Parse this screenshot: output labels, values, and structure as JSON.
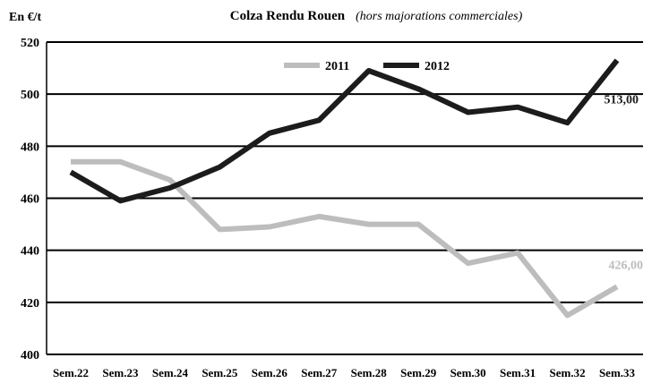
{
  "chart_data": {
    "type": "line",
    "title": "Colza Rendu Rouen",
    "subtitle": "(hors majorations commerciales)",
    "unit_label": "En €/t",
    "categories": [
      "Sem.22",
      "Sem.23",
      "Sem.24",
      "Sem.25",
      "Sem.26",
      "Sem.27",
      "Sem.28",
      "Sem.29",
      "Sem.30",
      "Sem.31",
      "Sem.32",
      "Sem.33"
    ],
    "ylim": [
      400,
      520
    ],
    "yticks": [
      "400",
      "420",
      "440",
      "460",
      "480",
      "500",
      "520"
    ],
    "grid": true,
    "legend_position": "top",
    "series": [
      {
        "name": "2011",
        "color": "#bdbdbd",
        "values": [
          474,
          474,
          467,
          448,
          449,
          453,
          450,
          450,
          435,
          439,
          415,
          426
        ]
      },
      {
        "name": "2012",
        "color": "#1c1c1c",
        "values": [
          470,
          459,
          464,
          472,
          485,
          490,
          509,
          502,
          493,
          495,
          489,
          513
        ]
      }
    ],
    "annotations": [
      {
        "series": "2012",
        "text": "513,00",
        "color": "#1c1c1c"
      },
      {
        "series": "2011",
        "text": "426,00",
        "color": "#bdbdbd"
      }
    ]
  }
}
